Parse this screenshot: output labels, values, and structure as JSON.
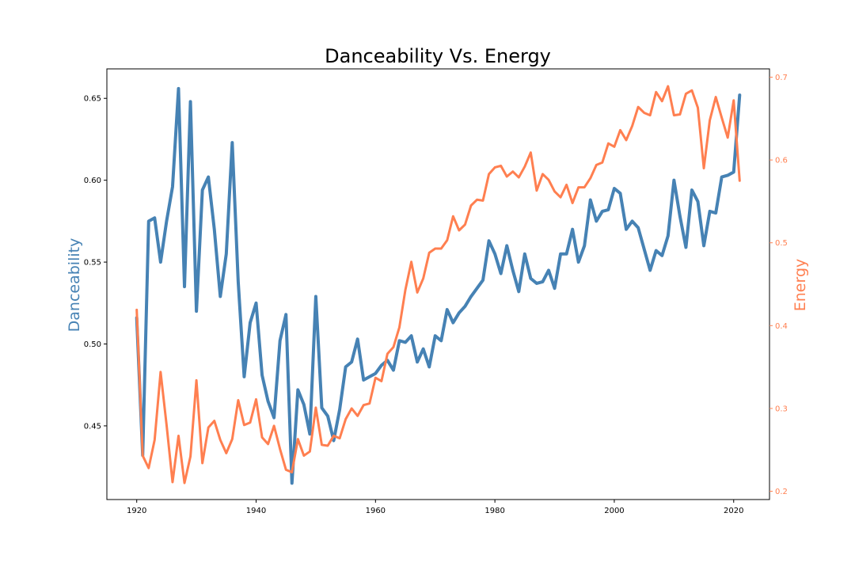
{
  "chart_data": {
    "type": "line",
    "title": "Danceability Vs. Energy",
    "xlabel": "",
    "ylabel_left": "Danceability",
    "ylabel_right": "Energy",
    "xlim": [
      1915,
      2026
    ],
    "ylim_left": [
      0.405,
      0.668
    ],
    "ylim_right": [
      0.19,
      0.71
    ],
    "x_ticks": [
      1920,
      1940,
      1960,
      1980,
      2000,
      2020
    ],
    "y_ticks_left": [
      0.45,
      0.5,
      0.55,
      0.6,
      0.65
    ],
    "y_ticks_left_labels": [
      "0.45",
      "0.50",
      "0.55",
      "0.60",
      "0.65"
    ],
    "y_ticks_right": [
      0.2,
      0.3,
      0.4,
      0.5,
      0.6,
      0.7
    ],
    "y_ticks_right_labels": [
      "0.2",
      "0.3",
      "0.4",
      "0.5",
      "0.6",
      "0.7"
    ],
    "colors": {
      "danceability": "#4682b4",
      "energy": "#ff7f50",
      "axis": "#000000"
    },
    "grid": false,
    "series": [
      {
        "name": "Danceability",
        "axis": "left",
        "color": "#4682b4",
        "x": [
          1920,
          1921,
          1922,
          1923,
          1924,
          1925,
          1926,
          1927,
          1928,
          1929,
          1930,
          1931,
          1932,
          1933,
          1934,
          1935,
          1936,
          1937,
          1938,
          1939,
          1940,
          1941,
          1942,
          1943,
          1944,
          1945,
          1946,
          1947,
          1948,
          1949,
          1950,
          1951,
          1952,
          1953,
          1954,
          1955,
          1956,
          1957,
          1958,
          1959,
          1960,
          1961,
          1962,
          1963,
          1964,
          1965,
          1966,
          1967,
          1968,
          1969,
          1970,
          1971,
          1972,
          1973,
          1974,
          1975,
          1976,
          1977,
          1978,
          1979,
          1980,
          1981,
          1982,
          1983,
          1984,
          1985,
          1986,
          1987,
          1988,
          1989,
          1990,
          1991,
          1992,
          1993,
          1994,
          1995,
          1996,
          1997,
          1998,
          1999,
          2000,
          2001,
          2002,
          2003,
          2004,
          2005,
          2006,
          2007,
          2008,
          2009,
          2010,
          2011,
          2012,
          2013,
          2014,
          2015,
          2016,
          2017,
          2018,
          2019,
          2020,
          2021
        ],
        "values": [
          0.516,
          0.432,
          0.575,
          0.577,
          0.55,
          0.575,
          0.596,
          0.656,
          0.535,
          0.648,
          0.52,
          0.594,
          0.602,
          0.57,
          0.529,
          0.555,
          0.623,
          0.538,
          0.48,
          0.513,
          0.525,
          0.481,
          0.465,
          0.455,
          0.502,
          0.518,
          0.415,
          0.472,
          0.463,
          0.445,
          0.529,
          0.461,
          0.456,
          0.441,
          0.46,
          0.486,
          0.489,
          0.503,
          0.478,
          0.48,
          0.482,
          0.487,
          0.49,
          0.484,
          0.502,
          0.501,
          0.505,
          0.489,
          0.497,
          0.486,
          0.505,
          0.502,
          0.521,
          0.513,
          0.519,
          0.523,
          0.529,
          0.534,
          0.539,
          0.563,
          0.555,
          0.543,
          0.56,
          0.545,
          0.532,
          0.555,
          0.54,
          0.537,
          0.538,
          0.545,
          0.534,
          0.555,
          0.555,
          0.57,
          0.55,
          0.56,
          0.588,
          0.575,
          0.581,
          0.582,
          0.595,
          0.592,
          0.57,
          0.575,
          0.571,
          0.558,
          0.545,
          0.557,
          0.554,
          0.566,
          0.6,
          0.578,
          0.559,
          0.594,
          0.587,
          0.56,
          0.581,
          0.58,
          0.602,
          0.603,
          0.605,
          0.652
        ]
      },
      {
        "name": "Energy",
        "axis": "right",
        "color": "#ff7f50",
        "x": [
          1920,
          1921,
          1922,
          1923,
          1924,
          1925,
          1926,
          1927,
          1928,
          1929,
          1930,
          1931,
          1932,
          1933,
          1934,
          1935,
          1936,
          1937,
          1938,
          1939,
          1940,
          1941,
          1942,
          1943,
          1944,
          1945,
          1946,
          1947,
          1948,
          1949,
          1950,
          1951,
          1952,
          1953,
          1954,
          1955,
          1956,
          1957,
          1958,
          1959,
          1960,
          1961,
          1962,
          1963,
          1964,
          1965,
          1966,
          1967,
          1968,
          1969,
          1970,
          1971,
          1972,
          1973,
          1974,
          1975,
          1976,
          1977,
          1978,
          1979,
          1980,
          1981,
          1982,
          1983,
          1984,
          1985,
          1986,
          1987,
          1988,
          1989,
          1990,
          1991,
          1992,
          1993,
          1994,
          1995,
          1996,
          1997,
          1998,
          1999,
          2000,
          2001,
          2002,
          2003,
          2004,
          2005,
          2006,
          2007,
          2008,
          2009,
          2010,
          2011,
          2012,
          2013,
          2014,
          2015,
          2016,
          2017,
          2018,
          2019,
          2020,
          2021
        ],
        "values": [
          0.419,
          0.243,
          0.228,
          0.262,
          0.344,
          0.28,
          0.211,
          0.267,
          0.21,
          0.242,
          0.334,
          0.234,
          0.277,
          0.285,
          0.262,
          0.246,
          0.263,
          0.31,
          0.28,
          0.283,
          0.311,
          0.265,
          0.257,
          0.279,
          0.251,
          0.226,
          0.223,
          0.263,
          0.243,
          0.248,
          0.301,
          0.256,
          0.255,
          0.267,
          0.264,
          0.287,
          0.3,
          0.291,
          0.304,
          0.306,
          0.337,
          0.333,
          0.366,
          0.374,
          0.398,
          0.443,
          0.477,
          0.44,
          0.457,
          0.488,
          0.493,
          0.493,
          0.503,
          0.532,
          0.515,
          0.522,
          0.545,
          0.552,
          0.551,
          0.583,
          0.591,
          0.593,
          0.58,
          0.586,
          0.579,
          0.592,
          0.609,
          0.563,
          0.583,
          0.576,
          0.562,
          0.555,
          0.57,
          0.548,
          0.567,
          0.567,
          0.578,
          0.594,
          0.597,
          0.62,
          0.616,
          0.636,
          0.624,
          0.641,
          0.664,
          0.657,
          0.654,
          0.682,
          0.671,
          0.689,
          0.654,
          0.655,
          0.68,
          0.684,
          0.663,
          0.59,
          0.648,
          0.676,
          0.651,
          0.627,
          0.672,
          0.575
        ]
      }
    ]
  }
}
